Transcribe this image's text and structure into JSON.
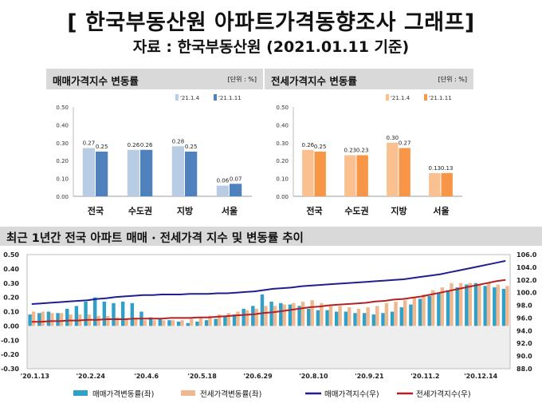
{
  "header": {
    "title": "[ 한국부동산원 아파트가격동향조사 그래프]",
    "subtitle": "자료 : 한국부동산원 (2021.01.11 기준)"
  },
  "colors": {
    "sale_light": "#b8cce4",
    "sale_dark": "#4f81bd",
    "rent_light": "#fac090",
    "rent_dark": "#f79646",
    "sale_bar": "#31a0c8",
    "rent_bar": "#f0b890",
    "sale_line": "#1f1f8f",
    "rent_line": "#b22222"
  },
  "chart_data": [
    {
      "type": "bar",
      "title": "매매가격지수 변동률",
      "unit_label": "[단위 : %]",
      "categories": [
        "전국",
        "수도권",
        "지방",
        "서울"
      ],
      "series": [
        {
          "name": "'21.1.4",
          "values": [
            0.27,
            0.26,
            0.28,
            0.06
          ]
        },
        {
          "name": "'21.1.11",
          "values": [
            0.25,
            0.26,
            0.25,
            0.07
          ]
        }
      ],
      "ylim": [
        0,
        0.5
      ],
      "yticks": [
        "0.50",
        "0.40",
        "0.30",
        "0.20",
        "0.10",
        "0.00"
      ],
      "legend": "top-right"
    },
    {
      "type": "bar",
      "title": "전세가격지수 변동률",
      "unit_label": "[단위 : %]",
      "categories": [
        "전국",
        "수도권",
        "지방",
        "서울"
      ],
      "series": [
        {
          "name": "'21.1.4",
          "values": [
            0.26,
            0.23,
            0.3,
            0.13
          ]
        },
        {
          "name": "'21.1.11",
          "values": [
            0.25,
            0.23,
            0.27,
            0.13
          ]
        }
      ],
      "ylim": [
        0,
        0.5
      ],
      "yticks": [
        "0.50",
        "0.40",
        "0.30",
        "0.20",
        "0.10",
        "0.00"
      ],
      "legend": "top-right"
    },
    {
      "type": "bar+line",
      "title": "최근 1년간 전국 아파트 매매 · 전세가격 지수 및 변동률 추이",
      "x_tick_labels": [
        "'20.1.13",
        "'20.2.24",
        "'20.4.6",
        "'20.5.18",
        "'20.6.29",
        "'20.8.10",
        "'20.9.21",
        "'20.11.2",
        "'20.12.14"
      ],
      "x_tick_week_index": [
        0,
        6,
        12,
        18,
        24,
        30,
        36,
        42,
        48
      ],
      "y_left": {
        "range": [
          -0.3,
          0.5
        ],
        "ticks": [
          "0.50",
          "0.40",
          "0.30",
          "0.20",
          "0.10",
          "0.00",
          "-0.10",
          "-0.20",
          "-0.30"
        ]
      },
      "y_right": {
        "range": [
          88,
          106
        ],
        "ticks": [
          "106.0",
          "104.0",
          "102.0",
          "100.0",
          "98.0",
          "96.0",
          "94.0",
          "92.0",
          "90.0",
          "88.0"
        ]
      },
      "sale_rate": [
        0.08,
        0.09,
        0.1,
        0.09,
        0.12,
        0.14,
        0.17,
        0.2,
        0.17,
        0.16,
        0.17,
        0.16,
        0.1,
        0.06,
        0.05,
        0.04,
        0.03,
        0.02,
        0.03,
        0.04,
        0.05,
        0.07,
        0.08,
        0.12,
        0.14,
        0.22,
        0.17,
        0.16,
        0.15,
        0.14,
        0.12,
        0.11,
        0.11,
        0.1,
        0.1,
        0.09,
        0.09,
        0.08,
        0.09,
        0.1,
        0.13,
        0.15,
        0.19,
        0.21,
        0.23,
        0.25,
        0.27,
        0.29,
        0.3,
        0.28,
        0.27,
        0.26
      ],
      "rent_rate": [
        0.1,
        0.1,
        0.09,
        0.09,
        0.08,
        0.08,
        0.08,
        0.07,
        0.07,
        0.06,
        0.05,
        0.05,
        0.04,
        0.04,
        0.04,
        0.04,
        0.04,
        0.05,
        0.06,
        0.07,
        0.08,
        0.09,
        0.1,
        0.11,
        0.12,
        0.14,
        0.14,
        0.15,
        0.16,
        0.17,
        0.18,
        0.16,
        0.14,
        0.14,
        0.13,
        0.12,
        0.13,
        0.14,
        0.16,
        0.17,
        0.18,
        0.2,
        0.22,
        0.25,
        0.27,
        0.3,
        0.3,
        0.3,
        0.29,
        0.3,
        0.29,
        0.28
      ],
      "sale_index": [
        98.2,
        98.3,
        98.4,
        98.5,
        98.6,
        98.7,
        98.8,
        99.0,
        99.1,
        99.3,
        99.4,
        99.5,
        99.6,
        99.6,
        99.7,
        99.7,
        99.7,
        99.8,
        99.8,
        99.8,
        99.9,
        99.9,
        100.0,
        100.1,
        100.2,
        100.4,
        100.6,
        100.7,
        100.8,
        101.0,
        101.1,
        101.2,
        101.3,
        101.4,
        101.5,
        101.6,
        101.7,
        101.8,
        101.9,
        102.0,
        102.1,
        102.3,
        102.5,
        102.7,
        102.9,
        103.2,
        103.5,
        103.8,
        104.1,
        104.4,
        104.7,
        105.0
      ],
      "rent_index": [
        95.4,
        95.4,
        95.5,
        95.5,
        95.6,
        95.6,
        95.7,
        95.7,
        95.8,
        95.8,
        95.8,
        95.9,
        95.9,
        95.9,
        95.9,
        96.0,
        96.0,
        96.0,
        96.1,
        96.1,
        96.2,
        96.3,
        96.4,
        96.5,
        96.6,
        96.8,
        96.9,
        97.1,
        97.3,
        97.5,
        97.7,
        97.8,
        98.0,
        98.1,
        98.2,
        98.3,
        98.4,
        98.6,
        98.7,
        98.9,
        99.0,
        99.2,
        99.4,
        99.7,
        100.0,
        100.3,
        100.6,
        100.9,
        101.2,
        101.5,
        101.8,
        102.0
      ],
      "legend": [
        {
          "name": "매매가격변동률(좌)",
          "kind": "bar",
          "color_key": "sale_bar"
        },
        {
          "name": "전세가격변동률(좌)",
          "kind": "bar",
          "color_key": "rent_bar"
        },
        {
          "name": "매매가격지수(우)",
          "kind": "line",
          "color_key": "sale_line"
        },
        {
          "name": "전세가격지수(우)",
          "kind": "line",
          "color_key": "rent_line"
        }
      ]
    }
  ]
}
